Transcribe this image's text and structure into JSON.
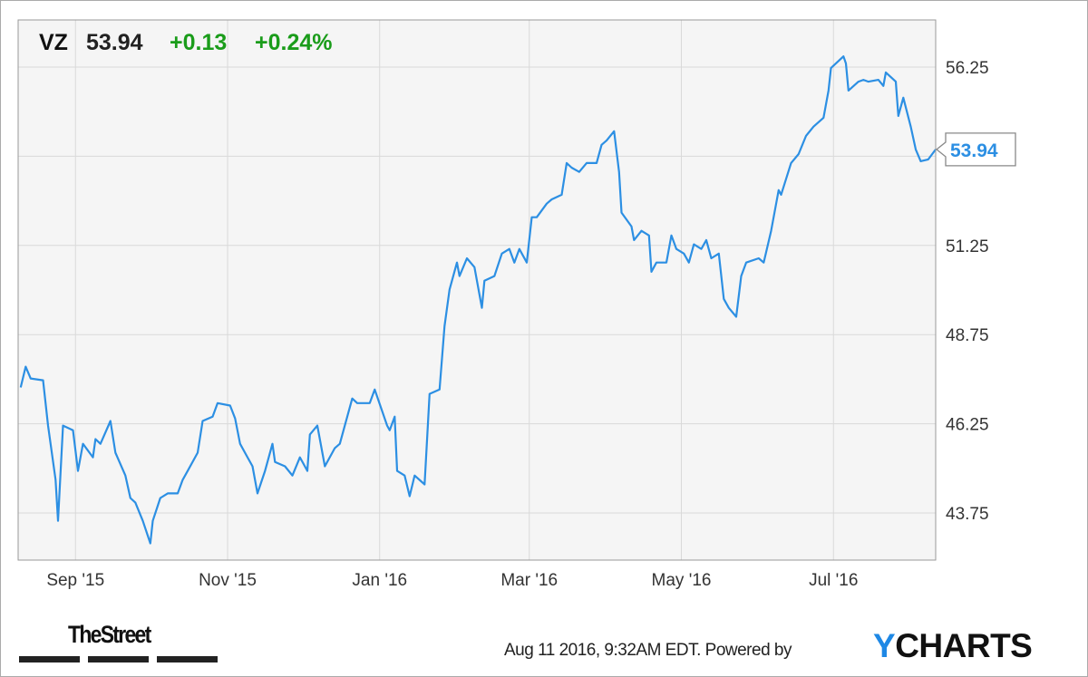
{
  "header": {
    "ticker": "VZ",
    "price": "53.94",
    "change": "+0.13",
    "change_pct": "+0.24%"
  },
  "colors": {
    "line": "#2c8fe3",
    "positive": "#1a9c1a",
    "plot_bg": "#f5f5f5",
    "grid": "#d9d9d9"
  },
  "footer": {
    "timestamp": "Aug 11 2016, 9:32AM EDT.",
    "powered_by": "Powered by",
    "brand_y": "Y",
    "brand_rest": "CHARTS",
    "publisher_logo": "TheStreet"
  },
  "chart_data": {
    "type": "line",
    "title": "",
    "xlabel": "",
    "ylabel": "",
    "xlim": [
      "2015-08-09",
      "2016-08-11"
    ],
    "ylim": [
      42.43,
      57.57
    ],
    "y_axis_position": "right",
    "grid": true,
    "x_ticks": [
      {
        "date": "2015-09-01",
        "label": "Sep '15"
      },
      {
        "date": "2015-11-01",
        "label": "Nov '15"
      },
      {
        "date": "2016-01-01",
        "label": "Jan '16"
      },
      {
        "date": "2016-03-01",
        "label": "Mar '16"
      },
      {
        "date": "2016-05-01",
        "label": "May '16"
      },
      {
        "date": "2016-07-01",
        "label": "Jul '16"
      }
    ],
    "y_ticks": [
      43.75,
      46.25,
      48.75,
      51.25,
      53.75,
      56.25
    ],
    "y_tick_labels": [
      "43.75",
      "46.25",
      "48.75",
      "51.25",
      "",
      "56.25"
    ],
    "last_value_label": "53.94",
    "series": [
      {
        "x": [
          "2015-08-10",
          "2015-08-12",
          "2015-08-14",
          "2015-08-19",
          "2015-08-21",
          "2015-08-24",
          "2015-08-25",
          "2015-08-27",
          "2015-08-31",
          "2015-09-02",
          "2015-09-04",
          "2015-09-08",
          "2015-09-09",
          "2015-09-11",
          "2015-09-15",
          "2015-09-17",
          "2015-09-21",
          "2015-09-23",
          "2015-09-25",
          "2015-09-28",
          "2015-10-01",
          "2015-10-02",
          "2015-10-05",
          "2015-10-08",
          "2015-10-12",
          "2015-10-14",
          "2015-10-16",
          "2015-10-20",
          "2015-10-22",
          "2015-10-26",
          "2015-10-28",
          "2015-11-02",
          "2015-11-04",
          "2015-11-06",
          "2015-11-09",
          "2015-11-11",
          "2015-11-13",
          "2015-11-16",
          "2015-11-19",
          "2015-11-20",
          "2015-11-24",
          "2015-11-27",
          "2015-11-30",
          "2015-12-03",
          "2015-12-04",
          "2015-12-07",
          "2015-12-10",
          "2015-12-14",
          "2015-12-16",
          "2015-12-18",
          "2015-12-21",
          "2015-12-23",
          "2015-12-28",
          "2015-12-30",
          "2016-01-04",
          "2016-01-05",
          "2016-01-07",
          "2016-01-08",
          "2016-01-11",
          "2016-01-13",
          "2016-01-15",
          "2016-01-19",
          "2016-01-21",
          "2016-01-25",
          "2016-01-27",
          "2016-01-29",
          "2016-02-01",
          "2016-02-02",
          "2016-02-05",
          "2016-02-08",
          "2016-02-11",
          "2016-02-12",
          "2016-02-16",
          "2016-02-19",
          "2016-02-22",
          "2016-02-24",
          "2016-02-26",
          "2016-02-29",
          "2016-03-02",
          "2016-03-04",
          "2016-03-08",
          "2016-03-10",
          "2016-03-14",
          "2016-03-16",
          "2016-03-18",
          "2016-03-21",
          "2016-03-24",
          "2016-03-28",
          "2016-03-30",
          "2016-04-01",
          "2016-04-04",
          "2016-04-06",
          "2016-04-07",
          "2016-04-11",
          "2016-04-12",
          "2016-04-15",
          "2016-04-18",
          "2016-04-19",
          "2016-04-21",
          "2016-04-25",
          "2016-04-27",
          "2016-04-29",
          "2016-05-02",
          "2016-05-04",
          "2016-05-06",
          "2016-05-09",
          "2016-05-11",
          "2016-05-13",
          "2016-05-16",
          "2016-05-18",
          "2016-05-20",
          "2016-05-23",
          "2016-05-25",
          "2016-05-27",
          "2016-06-01",
          "2016-06-03",
          "2016-06-06",
          "2016-06-09",
          "2016-06-10",
          "2016-06-14",
          "2016-06-17",
          "2016-06-20",
          "2016-06-23",
          "2016-06-27",
          "2016-06-29",
          "2016-06-30",
          "2016-07-05",
          "2016-07-06",
          "2016-07-07",
          "2016-07-11",
          "2016-07-13",
          "2016-07-15",
          "2016-07-19",
          "2016-07-21",
          "2016-07-22",
          "2016-07-26",
          "2016-07-27",
          "2016-07-29",
          "2016-08-01",
          "2016-08-03",
          "2016-08-05",
          "2016-08-08",
          "2016-08-11"
        ],
        "y": [
          47.27,
          47.85,
          47.52,
          47.47,
          46.2,
          44.68,
          43.53,
          46.2,
          46.07,
          44.93,
          45.69,
          45.31,
          45.82,
          45.69,
          46.33,
          45.44,
          44.8,
          44.17,
          44.04,
          43.53,
          42.9,
          43.53,
          44.17,
          44.3,
          44.3,
          44.68,
          44.93,
          45.44,
          46.33,
          46.45,
          46.83,
          46.76,
          46.4,
          45.69,
          45.31,
          45.06,
          44.3,
          44.93,
          45.69,
          45.18,
          45.06,
          44.8,
          45.31,
          44.93,
          45.95,
          46.2,
          45.06,
          45.57,
          45.69,
          46.2,
          46.96,
          46.83,
          46.83,
          47.21,
          46.2,
          46.07,
          46.45,
          44.93,
          44.8,
          44.22,
          44.8,
          44.55,
          47.09,
          47.21,
          48.99,
          50.01,
          50.77,
          50.39,
          50.89,
          50.64,
          49.5,
          50.26,
          50.39,
          51.02,
          51.15,
          50.77,
          51.15,
          50.77,
          52.04,
          52.04,
          52.42,
          52.54,
          52.67,
          53.56,
          53.43,
          53.31,
          53.56,
          53.56,
          54.07,
          54.19,
          54.45,
          53.31,
          52.17,
          51.78,
          51.4,
          51.66,
          51.53,
          50.51,
          50.77,
          50.77,
          51.53,
          51.15,
          51.02,
          50.77,
          51.28,
          51.15,
          51.4,
          50.89,
          51.02,
          49.75,
          49.5,
          49.25,
          50.39,
          50.77,
          50.89,
          50.77,
          51.66,
          52.8,
          52.67,
          53.56,
          53.81,
          54.32,
          54.58,
          54.83,
          55.59,
          56.22,
          56.55,
          56.35,
          55.59,
          55.84,
          55.89,
          55.84,
          55.89,
          55.72,
          56.1,
          55.84,
          54.88,
          55.39,
          54.58,
          53.94,
          53.61,
          53.66,
          53.94
        ]
      }
    ]
  }
}
